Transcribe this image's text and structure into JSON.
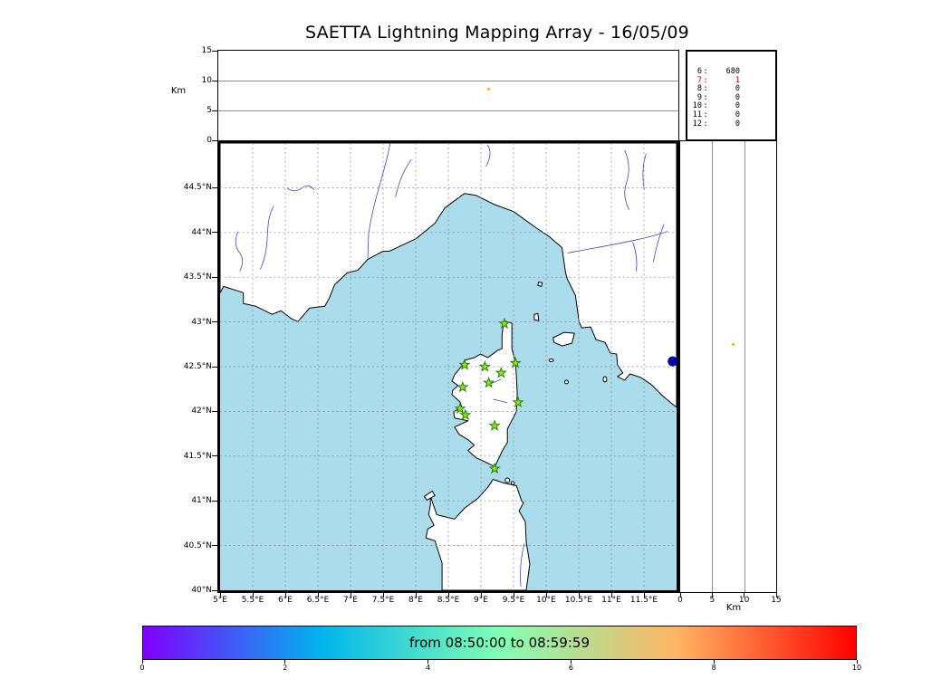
{
  "title": "SAETTA Lightning Mapping Array - 16/05/09",
  "panels": {
    "alt_lon": {
      "ylabel": "Km",
      "alt_range": [
        0,
        15
      ],
      "yticks": [
        {
          "v": 15,
          "label": "15"
        },
        {
          "v": 10,
          "label": "10"
        },
        {
          "v": 5,
          "label": "5"
        },
        {
          "v": 0,
          "label": "0"
        }
      ],
      "points": [
        {
          "lon": 9.12,
          "alt_km": 8.5,
          "color": "#ffaa00"
        }
      ]
    },
    "counts": {
      "rows": [
        {
          "label": "6",
          "value": "680",
          "color": "#000000"
        },
        {
          "label": "7",
          "value": "1",
          "color": "#dd0000"
        },
        {
          "label": "8",
          "value": "0",
          "color": "#000000"
        },
        {
          "label": "9",
          "value": "0",
          "color": "#000000"
        },
        {
          "label": "10",
          "value": "0",
          "color": "#000000"
        },
        {
          "label": "11",
          "value": "0",
          "color": "#000000"
        },
        {
          "label": "12",
          "value": "0",
          "color": "#000000"
        }
      ]
    },
    "map": {
      "lon_range": [
        5,
        12
      ],
      "lat_range": [
        40,
        45
      ],
      "sea_color": "#aadcec",
      "lat_ticks": [
        {
          "v": 44.5,
          "label": "44.5°N"
        },
        {
          "v": 44,
          "label": "44°N"
        },
        {
          "v": 43.5,
          "label": "43.5°N"
        },
        {
          "v": 43,
          "label": "43°N"
        },
        {
          "v": 42.5,
          "label": "42.5°N"
        },
        {
          "v": 42,
          "label": "42°N"
        },
        {
          "v": 41.5,
          "label": "41.5°N"
        },
        {
          "v": 41,
          "label": "41°N"
        },
        {
          "v": 40.5,
          "label": "40.5°N"
        },
        {
          "v": 40,
          "label": "40°N"
        }
      ],
      "lon_ticks": [
        {
          "v": 5,
          "label": "5°E"
        },
        {
          "v": 5.5,
          "label": "5.5°E"
        },
        {
          "v": 6,
          "label": "6°E"
        },
        {
          "v": 6.5,
          "label": "6.5°E"
        },
        {
          "v": 7,
          "label": "7°E"
        },
        {
          "v": 7.5,
          "label": "7.5°E"
        },
        {
          "v": 8,
          "label": "8°E"
        },
        {
          "v": 8.5,
          "label": "8.5°E"
        },
        {
          "v": 9,
          "label": "9°E"
        },
        {
          "v": 9.5,
          "label": "9.5°E"
        },
        {
          "v": 10,
          "label": "10°E"
        },
        {
          "v": 10.5,
          "label": "10.5°E"
        },
        {
          "v": 11,
          "label": "11°E"
        },
        {
          "v": 11.5,
          "label": "11.5°E"
        }
      ],
      "stations": [
        {
          "lon": 9.36,
          "lat": 42.98
        },
        {
          "lon": 8.75,
          "lat": 42.52
        },
        {
          "lon": 9.06,
          "lat": 42.5
        },
        {
          "lon": 9.53,
          "lat": 42.54
        },
        {
          "lon": 9.31,
          "lat": 42.43
        },
        {
          "lon": 8.72,
          "lat": 42.27
        },
        {
          "lon": 9.12,
          "lat": 42.32
        },
        {
          "lon": 9.57,
          "lat": 42.1
        },
        {
          "lon": 8.68,
          "lat": 42.03
        },
        {
          "lon": 8.76,
          "lat": 41.96
        },
        {
          "lon": 9.21,
          "lat": 41.84
        },
        {
          "lon": 9.21,
          "lat": 41.36
        }
      ],
      "sources": [
        {
          "lon": 11.94,
          "lat": 42.56,
          "size": 5.5,
          "color": "#0000a0"
        }
      ],
      "station_color": "#8ce81e",
      "station_edge_color": "#2a8000"
    },
    "alt_lat": {
      "xlabel": "Km",
      "alt_range": [
        0,
        15
      ],
      "xticks": [
        {
          "v": 0,
          "label": "0"
        },
        {
          "v": 5,
          "label": "5"
        },
        {
          "v": 10,
          "label": "10"
        },
        {
          "v": 15,
          "label": "15"
        }
      ],
      "points": [
        {
          "lat": 42.75,
          "alt_km": 8.3,
          "color": "#ffaa00"
        }
      ]
    }
  },
  "colorbar": {
    "label": "from 08:50:00 to 08:59:59",
    "range": [
      0,
      10
    ],
    "ticks": [
      {
        "v": 0,
        "label": "0"
      },
      {
        "v": 2,
        "label": "2"
      },
      {
        "v": 4,
        "label": "4"
      },
      {
        "v": 6,
        "label": "6"
      },
      {
        "v": 8,
        "label": "8"
      },
      {
        "v": 10,
        "label": "10"
      }
    ],
    "gradient": [
      {
        "stop": 0,
        "color": "#8000ff"
      },
      {
        "stop": 0.25,
        "color": "#00b4ec"
      },
      {
        "stop": 0.5,
        "color": "#80ffb5"
      },
      {
        "stop": 0.75,
        "color": "#ffb462"
      },
      {
        "stop": 1,
        "color": "#ff0000"
      }
    ]
  }
}
